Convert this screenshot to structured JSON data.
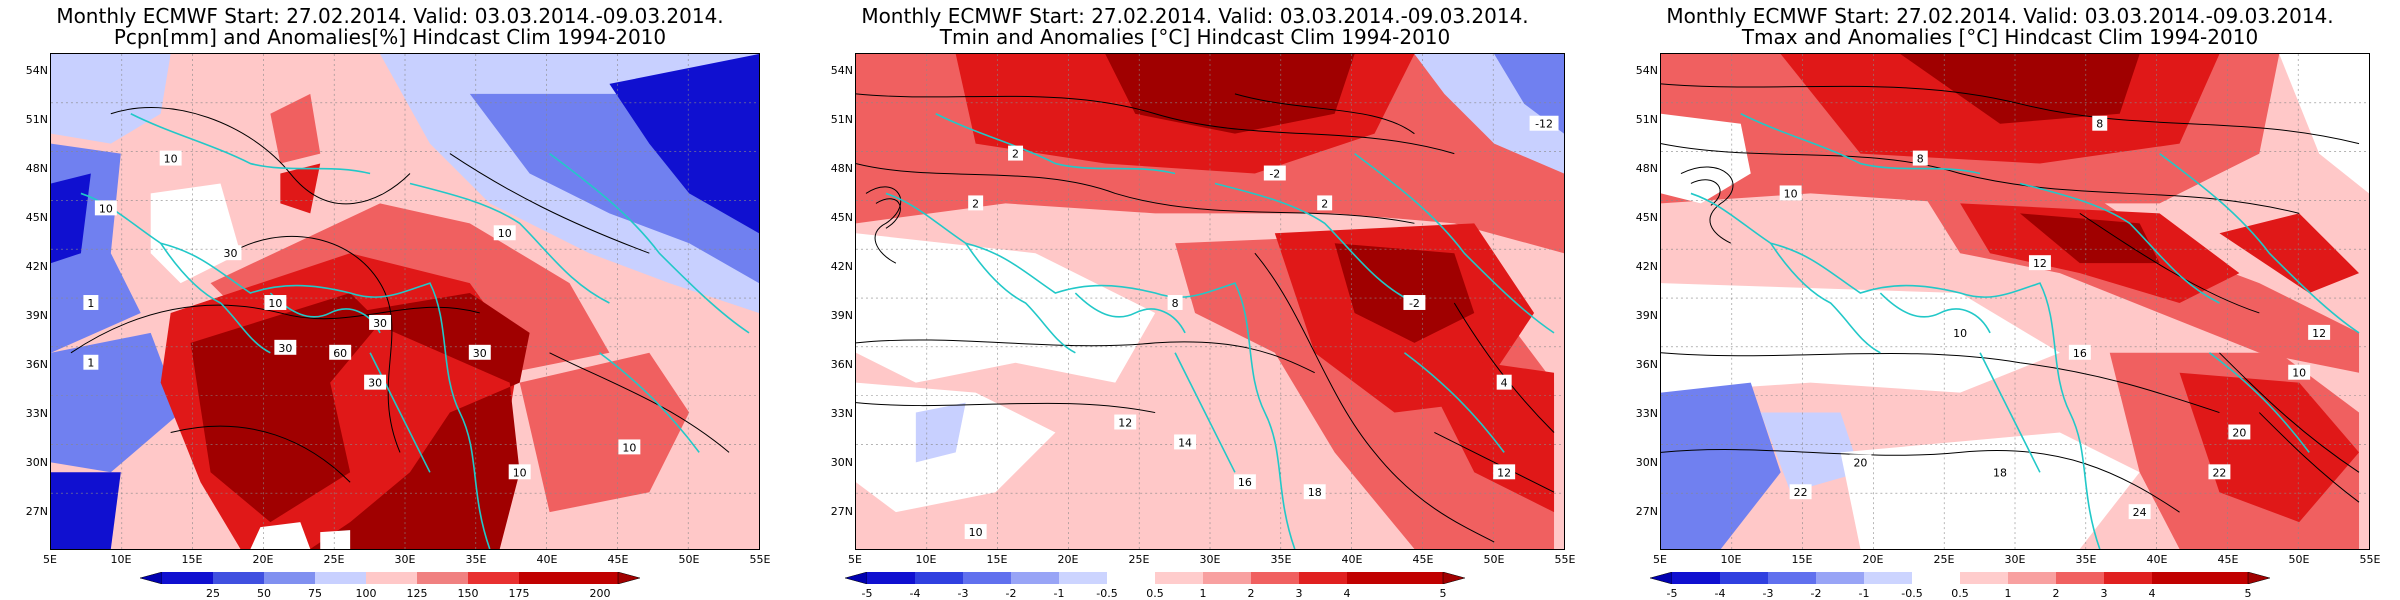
{
  "colors": {
    "neg_strong": "#1010d0",
    "neg_mid": "#7080f0",
    "neg_light": "#c8d0ff",
    "white": "#ffffff",
    "pos_light": "#ffc8c8",
    "pos_mid": "#f06060",
    "pos_strong": "#e01818",
    "pos_dark": "#a00000",
    "coast": "#22c8c8",
    "contour": "#000000"
  },
  "lat_ticks": [
    "54N",
    "51N",
    "48N",
    "45N",
    "42N",
    "39N",
    "36N",
    "33N",
    "30N",
    "27N"
  ],
  "lon_ticks": [
    "5E",
    "10E",
    "15E",
    "20E",
    "25E",
    "30E",
    "35E",
    "40E",
    "45E",
    "50E",
    "55E"
  ],
  "panels": [
    {
      "title_line1": "Monthly ECMWF Start: 27.02.2014. Valid: 03.03.2014.-09.03.2014.",
      "title_line2": "Pcpn[mm] and Anomalies[%] Hindcast Clim 1994-2010",
      "colorbar": [
        "25",
        "50",
        "75",
        "100",
        "125",
        "150",
        "175",
        "200"
      ],
      "contour_labels": [
        "10",
        "10",
        "10",
        "30",
        "30",
        "10",
        "30",
        "60",
        "30",
        "30",
        "10",
        "10",
        "1",
        "1"
      ]
    },
    {
      "title_line1": "Monthly ECMWF Start: 27.02.2014. Valid: 03.03.2014.-09.03.2014.",
      "title_line2": "Tmin and Anomalies [°C] Hindcast Clim 1994-2010",
      "colorbar": [
        "-5",
        "-4",
        "-3",
        "-2",
        "-1",
        "-0.5",
        "0.5",
        "1",
        "2",
        "3",
        "4",
        "5"
      ],
      "contour_labels": [
        "2",
        "2",
        "-2",
        "-12",
        "2",
        "-2",
        "4",
        "8",
        "12",
        "14",
        "16",
        "18",
        "10",
        "12"
      ]
    },
    {
      "title_line1": "Monthly ECMWF Start: 27.02.2014. Valid: 03.03.2014.-09.03.2014.",
      "title_line2": "Tmax and Anomalies [°C] Hindcast Clim 1994-2010",
      "colorbar": [
        "-5",
        "-4",
        "-3",
        "-2",
        "-1",
        "-0.5",
        "0.5",
        "1",
        "2",
        "3",
        "4",
        "5"
      ],
      "contour_labels": [
        "8",
        "8",
        "10",
        "12",
        "10",
        "16",
        "18",
        "20",
        "22",
        "24",
        "22",
        "20",
        "12",
        "10"
      ]
    }
  ]
}
